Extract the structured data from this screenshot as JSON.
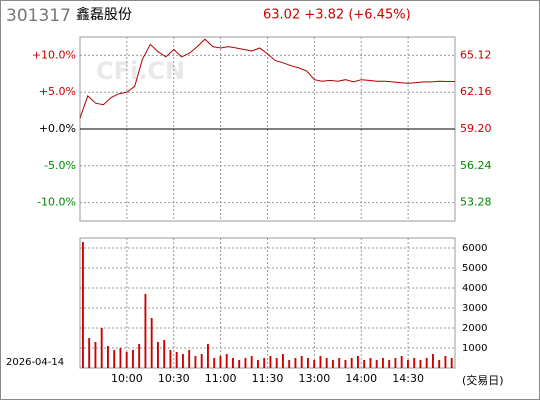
{
  "chart_data": [
    {
      "type": "line",
      "code": "301317",
      "title": "鑫磊股份",
      "subtitle": "63.02 +3.82 (+6.45%)",
      "watermark": "CFi.CN",
      "color": "#b00000",
      "x": [
        0,
        5,
        10,
        15,
        20,
        25,
        30,
        35,
        40,
        45,
        50,
        55,
        60,
        65,
        70,
        75,
        80,
        85,
        90,
        95,
        100,
        105,
        110,
        115,
        120,
        125,
        130,
        135,
        140,
        145,
        150,
        155,
        160,
        165,
        170,
        175,
        180,
        185,
        190,
        195,
        200,
        205,
        210,
        215,
        220,
        225,
        230,
        235,
        240
      ],
      "values": [
        1.5,
        4.5,
        3.5,
        3.3,
        4.3,
        4.8,
        5.0,
        5.8,
        9.5,
        11.5,
        10.5,
        9.8,
        10.8,
        9.8,
        10.3,
        11.2,
        12.2,
        11.2,
        11.0,
        11.2,
        11.0,
        10.8,
        10.6,
        11.0,
        10.2,
        9.3,
        9.0,
        8.6,
        8.3,
        7.9,
        6.7,
        6.5,
        6.6,
        6.5,
        6.7,
        6.4,
        6.7,
        6.6,
        6.5,
        6.5,
        6.4,
        6.3,
        6.2,
        6.3,
        6.4,
        6.4,
        6.5,
        6.45,
        6.45
      ],
      "xlim": [
        0,
        240
      ],
      "xticks": [
        {
          "value": 30,
          "label": "10:00"
        },
        {
          "value": 60,
          "label": "10:30"
        },
        {
          "value": 90,
          "label": "11:00"
        },
        {
          "value": 120,
          "label": "11:30"
        },
        {
          "value": 150,
          "label": "13:00"
        },
        {
          "value": 180,
          "label": "14:00"
        },
        {
          "value": 210,
          "label": "14:30"
        }
      ],
      "ylim": [
        -12.5,
        12.5
      ],
      "yticks": [
        {
          "value": 10,
          "label": "+10.0%"
        },
        {
          "value": 5,
          "label": "+5.0%"
        },
        {
          "value": 0,
          "label": "+0.0%"
        },
        {
          "value": -5,
          "label": "-5.0%"
        },
        {
          "value": -10,
          "label": "-10.0%"
        }
      ],
      "y2lim": [
        51.8,
        66.6
      ],
      "y2ticks": [
        65.12,
        62.16,
        {
          "value": 59.2,
          "label": "59.20"
        },
        56.24,
        53.28
      ],
      "grid": true
    },
    {
      "type": "bar",
      "date": "2026-04-14",
      "xlabel": "(交易日)",
      "color": "#cc0000",
      "x": [
        0,
        4,
        8,
        12,
        16,
        20,
        24,
        28,
        32,
        36,
        40,
        44,
        48,
        52,
        56,
        60,
        64,
        68,
        72,
        76,
        80,
        84,
        88,
        92,
        96,
        100,
        104,
        108,
        112,
        116,
        120,
        124,
        128,
        132,
        136,
        140,
        144,
        148,
        152,
        156,
        160,
        164,
        168,
        172,
        176,
        180,
        184,
        188,
        192,
        196,
        200,
        204,
        208,
        212,
        216,
        220,
        224,
        228,
        232,
        236
      ],
      "values": [
        6300,
        1500,
        1300,
        2000,
        1100,
        900,
        1000,
        800,
        900,
        1200,
        3700,
        2500,
        1300,
        1400,
        900,
        800,
        700,
        900,
        600,
        700,
        1200,
        500,
        600,
        700,
        500,
        400,
        500,
        600,
        400,
        500,
        600,
        500,
        700,
        400,
        500,
        600,
        500,
        400,
        600,
        500,
        400,
        500,
        400,
        500,
        600,
        400,
        500,
        400,
        500,
        400,
        500,
        600,
        400,
        500,
        400,
        500,
        700,
        400,
        600,
        500
      ],
      "xlim": [
        0,
        240
      ],
      "ylim": [
        0,
        6500
      ],
      "yticks": [
        1000,
        2000,
        3000,
        4000,
        5000,
        6000
      ],
      "grid": true
    }
  ]
}
